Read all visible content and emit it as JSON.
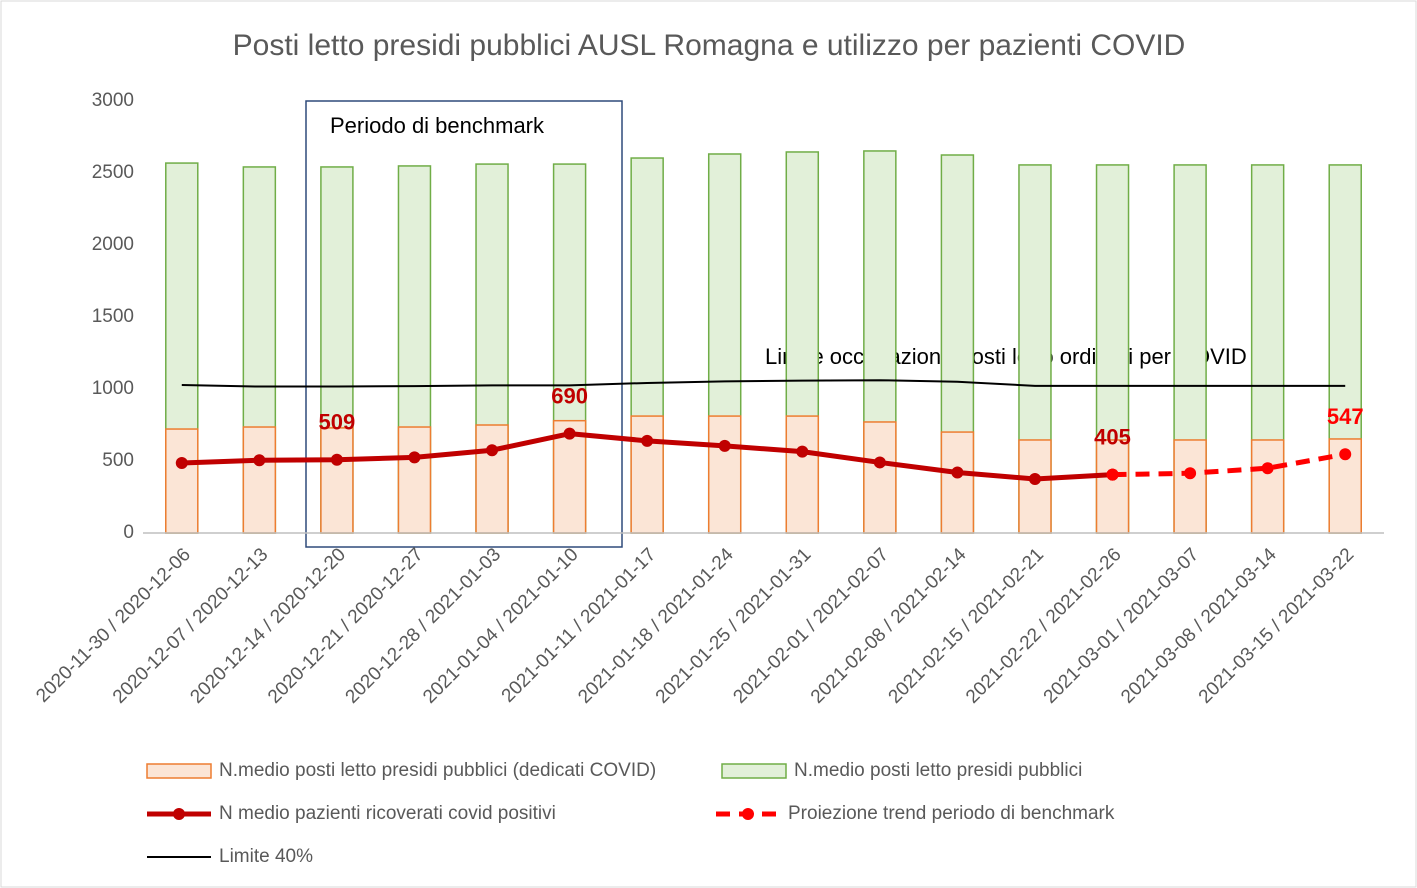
{
  "chart_data": {
    "type": "bar",
    "title": "Posti letto presidi pubblici AUSL Romagna e utilizzo per pazienti COVID",
    "categories": [
      "2020-11-30 / 2020-12-06",
      "2020-12-07 / 2020-12-13",
      "2020-12-14 / 2020-12-20",
      "2020-12-21 / 2020-12-27",
      "2020-12-28 / 2021-01-03",
      "2021-01-04 / 2021-01-10",
      "2021-01-11 / 2021-01-17",
      "2021-01-18 / 2021-01-24",
      "2021-01-25 / 2021-01-31",
      "2021-02-01 / 2021-02-07",
      "2021-02-08 / 2021-02-14",
      "2021-02-15 / 2021-02-21",
      "2021-02-22 / 2021-02-26",
      "2021-03-01 / 2021-03-07",
      "2021-03-08 / 2021-03-14",
      "2021-03-15 / 2021-03-22"
    ],
    "series": [
      {
        "name": "N.medio posti letto presidi pubblici (dedicati COVID)",
        "type": "bar",
        "color": "#fbe5d6",
        "stroke": "#ed7d31",
        "values": [
          722,
          736,
          730,
          736,
          750,
          780,
          812,
          812,
          812,
          771,
          701,
          646,
          646,
          646,
          646,
          653
        ]
      },
      {
        "name": "N.medio posti letto presidi pubblici",
        "type": "bar",
        "color": "#e2f0d9",
        "stroke": "#70ad47",
        "values": [
          2569,
          2542,
          2542,
          2549,
          2562,
          2562,
          2604,
          2632,
          2646,
          2653,
          2625,
          2556,
          2556,
          2556,
          2556,
          2556
        ]
      },
      {
        "name": "N medio pazienti ricoverati covid positivi",
        "type": "line",
        "color": "#c00000",
        "marker": true,
        "dashed": false,
        "values": [
          486,
          505,
          509,
          525,
          575,
          690,
          640,
          605,
          565,
          490,
          420,
          375,
          405,
          null,
          null,
          null
        ],
        "value_labels": [
          null,
          null,
          "509",
          null,
          null,
          "690",
          null,
          null,
          null,
          null,
          null,
          null,
          "405",
          null,
          null,
          null
        ]
      },
      {
        "name": "Proiezione trend periodo di benchmark",
        "type": "line",
        "color": "#ff0000",
        "marker": true,
        "dashed": true,
        "values": [
          null,
          null,
          null,
          null,
          null,
          null,
          null,
          null,
          null,
          null,
          null,
          null,
          405,
          415,
          450,
          547
        ],
        "value_labels": [
          null,
          null,
          null,
          null,
          null,
          null,
          null,
          null,
          null,
          null,
          null,
          null,
          null,
          null,
          null,
          "547"
        ]
      },
      {
        "name": "Limite 40%",
        "type": "line",
        "color": "#000000",
        "marker": false,
        "dashed": false,
        "values": [
          1028,
          1017,
          1017,
          1020,
          1025,
          1025,
          1042,
          1053,
          1058,
          1061,
          1050,
          1022,
          1022,
          1022,
          1022,
          1022
        ]
      }
    ],
    "annotations": [
      "Periodo di benchmark",
      "Limite occupazione posti letto ordinari per COVID"
    ],
    "ylim": [
      0,
      3000
    ],
    "yticks": [
      0,
      500,
      1000,
      1500,
      2000,
      2500,
      3000
    ],
    "grid": false
  }
}
